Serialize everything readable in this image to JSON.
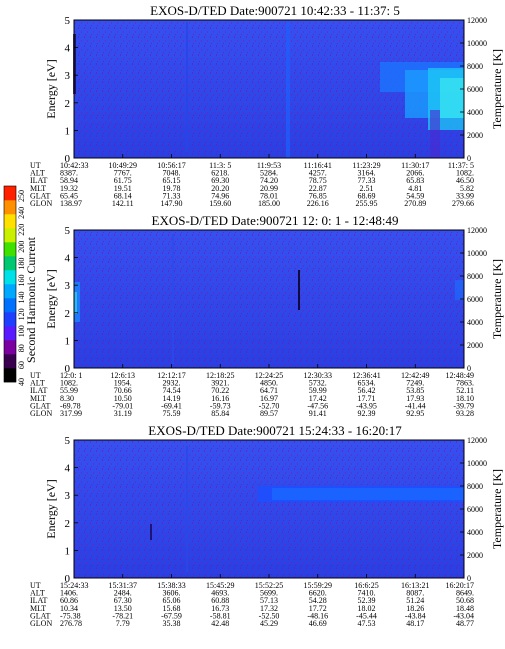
{
  "chart_data": {
    "type": "heatmap",
    "colorbar": {
      "label": "Second Harmonic Current",
      "ticks": [
        "40",
        "60",
        "80",
        "100",
        "120",
        "140",
        "160",
        "180",
        "200",
        "220",
        "240",
        "250"
      ],
      "colors": [
        "#000000",
        "#3a0050",
        "#7a00a0",
        "#5a1aff",
        "#1f3fff",
        "#0070ff",
        "#00a8ff",
        "#00e0e8",
        "#00c870",
        "#40e000",
        "#c8f000",
        "#ffe000",
        "#ff9000",
        "#ff2000"
      ]
    },
    "panels": [
      {
        "title": "EXOS-D/TED   Date:900721   10:42:33 - 11:37: 5",
        "ylabel": "Energy [eV]",
        "y2label": "Temperature [K]",
        "ylim": [
          0,
          5
        ],
        "y2lim": [
          0,
          12000
        ],
        "yticks": [
          "0",
          "1",
          "2",
          "3",
          "4",
          "5"
        ],
        "y2ticks": [
          "0",
          "2000",
          "4000",
          "6000",
          "8000",
          "10000",
          "12000"
        ],
        "ephemeris_labels": [
          "UT",
          "ALT",
          "ILAT",
          "MLT",
          "GLAT",
          "GLON"
        ],
        "columns": [
          [
            "10:42:33",
            "8387.",
            "58.94",
            "19.32",
            "65.45",
            "138.97"
          ],
          [
            "10:49:29",
            "7767.",
            "61.75",
            "19.51",
            "68.14",
            "142.11"
          ],
          [
            "10:56:17",
            "7048.",
            "65.15",
            "19.78",
            "71.33",
            "147.90"
          ],
          [
            "11:3: 5",
            "6218.",
            "69.30",
            "20.20",
            "74.96",
            "159.60"
          ],
          [
            "11:9:53",
            "5284.",
            "74.20",
            "20.99",
            "78.01",
            "185.00"
          ],
          [
            "11:16:41",
            "4257.",
            "78.75",
            "22.87",
            "76.85",
            "226.16"
          ],
          [
            "11:23:29",
            "3164.",
            "77.33",
            "2.51",
            "68.69",
            "255.95"
          ],
          [
            "11:30:17",
            "2066.",
            "65.83",
            "4.81",
            "54.59",
            "270.89"
          ],
          [
            "11:37: 5",
            "1082.",
            "46.50",
            "5.82",
            "33.99",
            "279.66"
          ]
        ]
      },
      {
        "title": "EXOS-D/TED   Date:900721   12: 0: 1 - 12:48:49",
        "ylabel": "Energy [eV]",
        "y2label": "Temperature [K]",
        "ylim": [
          0,
          5
        ],
        "y2lim": [
          0,
          12000
        ],
        "yticks": [
          "0",
          "1",
          "2",
          "3",
          "4",
          "5"
        ],
        "y2ticks": [
          "0",
          "2000",
          "4000",
          "6000",
          "8000",
          "10000",
          "12000"
        ],
        "ephemeris_labels": [
          "UT",
          "ALT",
          "ILAT",
          "MLT",
          "GLAT",
          "GLON"
        ],
        "columns": [
          [
            "12:0: 1",
            "1082.",
            "55.99",
            "8.30",
            "-69.78",
            "317.99"
          ],
          [
            "12:6:13",
            "1954.",
            "70.66",
            "10.50",
            "-79.01",
            "31.19"
          ],
          [
            "12:12:17",
            "2932.",
            "74.54",
            "14.19",
            "-69.41",
            "75.59"
          ],
          [
            "12:18:25",
            "3921.",
            "70.22",
            "16.16",
            "-59.73",
            "85.84"
          ],
          [
            "12:24:25",
            "4850.",
            "64.71",
            "16.97",
            "-52.70",
            "89.57"
          ],
          [
            "12:30:33",
            "5732.",
            "59.99",
            "17.42",
            "-47.56",
            "91.41"
          ],
          [
            "12:36:41",
            "6534.",
            "56.42",
            "17.71",
            "-43.95",
            "92.39"
          ],
          [
            "12:42:49",
            "7249.",
            "53.85",
            "17.93",
            "-41.44",
            "92.95"
          ],
          [
            "12:48:49",
            "7863.",
            "52.11",
            "18.10",
            "-39.79",
            "93.28"
          ]
        ]
      },
      {
        "title": "EXOS-D/TED   Date:900721   15:24:33 - 16:20:17",
        "ylabel": "Energy [eV]",
        "y2label": "Temperature [K]",
        "ylim": [
          0,
          5
        ],
        "y2lim": [
          0,
          12000
        ],
        "yticks": [
          "0",
          "1",
          "2",
          "3",
          "4",
          "5"
        ],
        "y2ticks": [
          "0",
          "2000",
          "4000",
          "6000",
          "8000",
          "10000",
          "12000"
        ],
        "ephemeris_labels": [
          "UT",
          "ALT",
          "ILAT",
          "MLT",
          "GLAT",
          "GLON"
        ],
        "columns": [
          [
            "15:24:33",
            "1406.",
            "60.86",
            "10.34",
            "-75.38",
            "276.78"
          ],
          [
            "15:31:37",
            "2484.",
            "67.30",
            "13.50",
            "-78.21",
            "7.79"
          ],
          [
            "15:38:33",
            "3606.",
            "65.06",
            "15.68",
            "-67.59",
            "35.38"
          ],
          [
            "15:45:29",
            "4693.",
            "60.88",
            "16.73",
            "-58.81",
            "42.48"
          ],
          [
            "15:52:25",
            "5699.",
            "57.13",
            "17.32",
            "-52.50",
            "45.29"
          ],
          [
            "15:59:29",
            "6620.",
            "54.28",
            "17.72",
            "-48.16",
            "46.69"
          ],
          [
            "16:6:25",
            "7410.",
            "52.39",
            "18.02",
            "-45.44",
            "47.53"
          ],
          [
            "16:13:21",
            "8087.",
            "51.24",
            "18.26",
            "-43.84",
            "48.17"
          ],
          [
            "16:20:17",
            "8649.",
            "50.68",
            "18.48",
            "-43.04",
            "48.77"
          ]
        ]
      }
    ]
  }
}
